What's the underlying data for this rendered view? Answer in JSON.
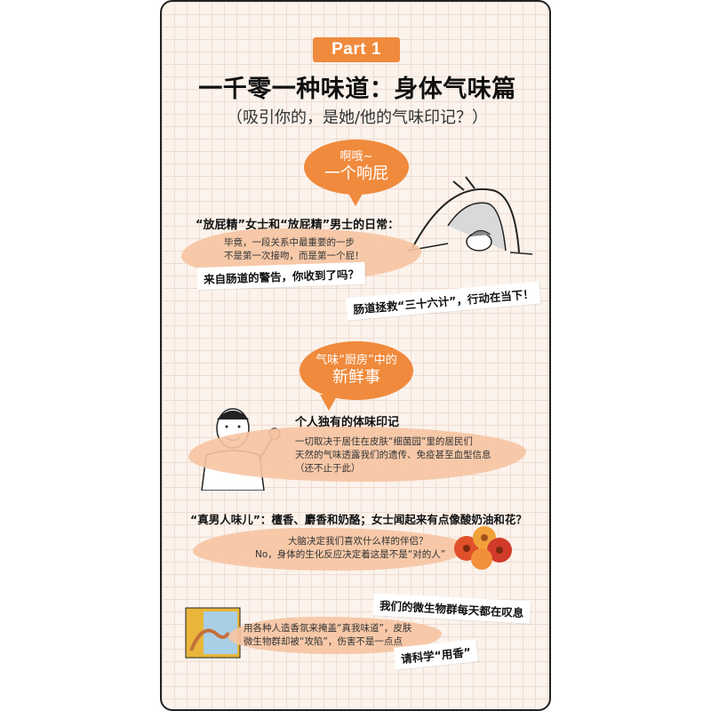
{
  "header": {
    "badge": "Part 1",
    "title": "一千零一种味道：身体气味篇",
    "subtitle": "（吸引你的，是她/他的气味印记？）"
  },
  "section1": {
    "bubble_line1": "啊哦~",
    "bubble_line2": "一个响屁",
    "heading": "“放屁精”女士和“放屁精”男士的日常：",
    "body_line1": "毕竟，一段关系中最重要的一步",
    "body_line2": "不是第一次接吻，而是第一个屁！",
    "callout1": "来自肠道的警告，你收到了吗？",
    "callout2": "肠道拯救“三十六计”，行动在当下！"
  },
  "section2": {
    "bubble_line1": "气味“厨房”中的",
    "bubble_line2": "新鲜事",
    "heading": "个人独有的体味印记",
    "body_line1": "一切取决于居住在皮肤“细菌园”里的居民们",
    "body_line2": "天然的气味透露我们的遗传、免疫甚至血型信息",
    "body_line3": "（还不止于此）"
  },
  "section3": {
    "heading": "“真男人味儿”：檀香、麝香和奶酪；女士闻起来有点像酸奶油和花？",
    "body_line1": "大脑决定我们喜欢什么样的伴侣？",
    "body_line2": "No，身体的生化反应决定着这是不是“对的人”"
  },
  "section4": {
    "callout1": "我们的微生物群每天都在叹息",
    "body_line1": "用各种人造香氛来掩盖“真我味道”，皮肤",
    "body_line2": "微生物群却被“攻陷”，伤害不是一点点",
    "callout2": "请科学“用香”"
  },
  "colors": {
    "accent": "#f08a3c",
    "brush": "#f6c4a2",
    "background": "#fbf3ec"
  },
  "icons": [
    "yoga-woman-illustration",
    "smiling-man-illustration",
    "flower-bouquet-illustration",
    "foot-map-illustration"
  ]
}
